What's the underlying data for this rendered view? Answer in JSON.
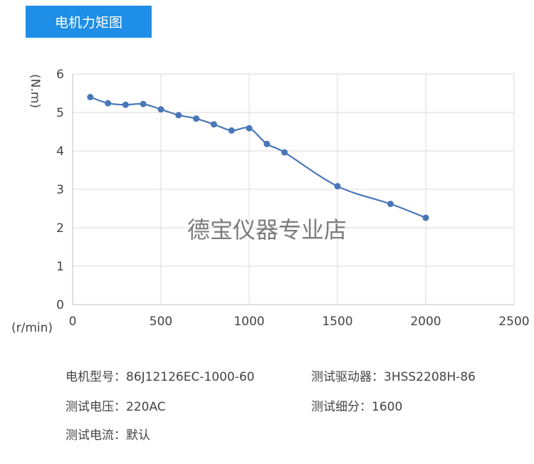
{
  "header": {
    "title": "电机力矩图"
  },
  "chart_data": {
    "type": "line",
    "title": "",
    "xlabel": "(r/min)",
    "ylabel": "(N.m)",
    "xlim": [
      0,
      2500
    ],
    "ylim": [
      0,
      6
    ],
    "xticks": [
      0,
      500,
      1000,
      1500,
      2000,
      2500
    ],
    "yticks": [
      0,
      1,
      2,
      3,
      4,
      5,
      6
    ],
    "grid": true,
    "series": [
      {
        "color": "#4a76b8",
        "x": [
          100,
          200,
          300,
          400,
          500,
          600,
          700,
          800,
          900,
          1000,
          1100,
          1200,
          1500,
          1800,
          2000
        ],
        "y": [
          5.4,
          5.24,
          5.2,
          5.22,
          5.08,
          4.93,
          4.84,
          4.69,
          4.53,
          4.59,
          4.18,
          3.96,
          3.08,
          2.62,
          2.26
        ]
      }
    ]
  },
  "watermark": "德宝仪器专业店",
  "specs": {
    "motor_model": "电机型号：86J12126EC-1000-60",
    "test_driver": "测试驱动器：3HSS2208H-86",
    "test_voltage": "测试电压：220AC",
    "test_subdivision": "测试细分：1600",
    "test_current": "测试电流：默认"
  }
}
